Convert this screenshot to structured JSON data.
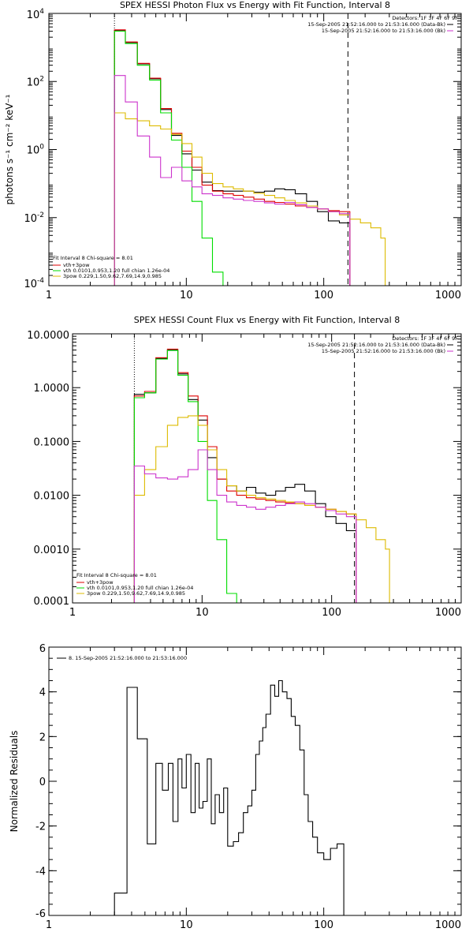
{
  "chart_data": [
    {
      "type": "line",
      "title": "SPEX HESSI Photon Flux vs Energy with Fit Function, Interval 8",
      "ylabel": "photons s⁻¹ cm⁻² keV⁻¹",
      "xlabel": "",
      "xscale": "log",
      "yscale": "log",
      "xlim": [
        1,
        1000
      ],
      "ylim": [
        0.0001,
        10000
      ],
      "x_ticks": [
        {
          "value": 1,
          "label": "1"
        },
        {
          "value": 10,
          "label": "10"
        },
        {
          "value": 100,
          "label": "100"
        },
        {
          "value": 1000,
          "label": "1000"
        }
      ],
      "y_ticks": [
        {
          "value": 0.0001,
          "base": "10",
          "exp": "-4"
        },
        {
          "value": 0.01,
          "base": "10",
          "exp": "-2"
        },
        {
          "value": 1,
          "base": "10",
          "exp": "0"
        },
        {
          "value": 100,
          "base": "10",
          "exp": "2"
        },
        {
          "value": 10000,
          "base": "10",
          "exp": "4"
        }
      ],
      "vlines": [
        {
          "x": 3,
          "style": "dotted",
          "color": "#000000"
        },
        {
          "x": 150,
          "style": "dashed",
          "color": "#000000"
        }
      ],
      "legend_topright": {
        "header": "Detectors: 1F 3F 4F 6F 9F",
        "entries": [
          {
            "text": "15-Sep-2005 21:52:16.000 to 21:53:16.000 (Data-Bk)",
            "color": "#000000"
          },
          {
            "text": "15-Sep-2005 21:52:16.000 to 21:53:16.000 (Bk)",
            "color": "#cc33cc"
          }
        ]
      },
      "legend_bottomleft": {
        "header": "Fit Interval 8    Chi-square = 8.01",
        "entries": [
          {
            "text": "vth+3pow",
            "color": "#dd0000"
          },
          {
            "text": "vth 0.0101,0.953,1.20  full chian 1.26e-04",
            "color": "#00dd00"
          },
          {
            "text": "3pow 0.229,1.50,9.62,7.69,14.9,0.985",
            "color": "#ddbb00"
          }
        ]
      },
      "series": [
        {
          "color": "#000000",
          "edges": [
            3,
            3.6,
            4.4,
            5.4,
            6.5,
            7.8,
            9.3,
            11,
            13,
            15.5,
            18.5,
            22,
            26,
            31,
            37,
            44,
            52,
            62,
            75,
            90,
            108,
            130,
            155
          ],
          "values": [
            3200,
            1400,
            330,
            120,
            15,
            2.6,
            0.75,
            0.25,
            0.11,
            0.062,
            0.06,
            0.06,
            0.06,
            0.056,
            0.06,
            0.07,
            0.066,
            0.05,
            0.03,
            0.015,
            0.008,
            0.007
          ]
        },
        {
          "color": "#dd0000",
          "edges": [
            3,
            3.6,
            4.4,
            5.4,
            6.5,
            7.8,
            9.3,
            11,
            13,
            15.5,
            18.5,
            22,
            26,
            31,
            37,
            44,
            52,
            62,
            75,
            90,
            108,
            130,
            155
          ],
          "values": [
            3300,
            1450,
            340,
            125,
            16,
            3.0,
            0.9,
            0.3,
            0.09,
            0.06,
            0.05,
            0.045,
            0.04,
            0.035,
            0.03,
            0.028,
            0.025,
            0.022,
            0.02,
            0.018,
            0.016,
            0.015
          ]
        },
        {
          "color": "#00dd00",
          "edges": [
            3,
            3.6,
            4.4,
            5.4,
            6.5,
            7.8,
            9.3,
            11,
            13,
            15.5,
            18.5,
            22
          ],
          "values": [
            3000,
            1300,
            300,
            110,
            12,
            1.9,
            0.3,
            0.03,
            0.0025,
            0.00025,
            2e-05
          ]
        },
        {
          "color": "#ddbb00",
          "edges": [
            3,
            3.6,
            4.4,
            5.4,
            6.5,
            7.8,
            9.3,
            11,
            13,
            15.5,
            18.5,
            22,
            26,
            31,
            37,
            44,
            52,
            62,
            75,
            90,
            108,
            130,
            155,
            185,
            220,
            260,
            280
          ],
          "values": [
            12,
            8,
            7,
            5,
            4,
            2.8,
            1.5,
            0.6,
            0.2,
            0.1,
            0.08,
            0.07,
            0.06,
            0.052,
            0.045,
            0.038,
            0.032,
            0.027,
            0.022,
            0.018,
            0.015,
            0.012,
            0.009,
            0.007,
            0.005,
            0.0025
          ]
        },
        {
          "color": "#cc33cc",
          "edges": [
            3,
            3.6,
            4.4,
            5.4,
            6.5,
            7.8,
            9.3,
            11,
            13,
            15.5,
            18.5,
            22,
            26,
            31,
            37,
            44,
            52,
            62,
            75,
            90,
            108,
            130,
            155
          ],
          "values": [
            150,
            25,
            2.5,
            0.6,
            0.15,
            0.3,
            0.12,
            0.08,
            0.05,
            0.045,
            0.038,
            0.035,
            0.032,
            0.03,
            0.027,
            0.025,
            0.028,
            0.024,
            0.02,
            0.018,
            0.015,
            0.013
          ]
        }
      ]
    },
    {
      "type": "line",
      "title": "SPEX HESSI Count Flux vs Energy with Fit Function, Interval 8",
      "ylabel": "",
      "xlabel": "",
      "xscale": "log",
      "yscale": "log",
      "xlim": [
        1,
        1000
      ],
      "ylim": [
        0.0001,
        10
      ],
      "x_ticks": [
        {
          "value": 1,
          "label": "1"
        },
        {
          "value": 10,
          "label": "10"
        },
        {
          "value": 100,
          "label": "100"
        },
        {
          "value": 1000,
          "label": "1000"
        }
      ],
      "y_ticks": [
        {
          "value": 0.0001,
          "label": "0.0001"
        },
        {
          "value": 0.001,
          "label": "0.0010"
        },
        {
          "value": 0.01,
          "label": "0.0100"
        },
        {
          "value": 0.1,
          "label": "0.1000"
        },
        {
          "value": 1,
          "label": "1.0000"
        },
        {
          "value": 10,
          "label": "10.0000"
        }
      ],
      "vlines": [
        {
          "x": 3,
          "style": "dotted",
          "color": "#000000"
        },
        {
          "x": 150,
          "style": "dashed",
          "color": "#000000"
        }
      ],
      "legend_topright": {
        "header": "Detectors: 1F 3F 4F 6F 9F",
        "entries": [
          {
            "text": "15-Sep-2005 21:52:16.000 to 21:53:16.000 (Data-Bk)",
            "color": "#000000"
          },
          {
            "text": "15-Sep-2005 21:52:16.000 to 21:53:16.000 (Bk)",
            "color": "#cc33cc"
          }
        ]
      },
      "legend_bottomleft": {
        "header": "Fit Interval 8    Chi-square = 8.01",
        "entries": [
          {
            "text": "vth+3pow",
            "color": "#dd0000"
          },
          {
            "text": "vth 0.0101,0.953,1.20  full chian 1.26e-04",
            "color": "#00dd00"
          },
          {
            "text": "3pow 0.229,1.50,9.62,7.69,14.9,0.985",
            "color": "#ddbb00"
          }
        ]
      },
      "series": [
        {
          "color": "#000000",
          "edges": [
            3,
            3.6,
            4.4,
            5.4,
            6.5,
            7.8,
            9.3,
            11,
            13,
            15.5,
            18.5,
            22,
            26,
            31,
            37,
            44,
            52,
            62,
            75,
            90,
            108,
            130,
            155
          ],
          "values": [
            0.75,
            0.8,
            3.5,
            5.0,
            1.8,
            0.6,
            0.25,
            0.05,
            0.02,
            0.015,
            0.012,
            0.014,
            0.011,
            0.01,
            0.012,
            0.014,
            0.016,
            0.012,
            0.007,
            0.004,
            0.003,
            0.0022
          ]
        },
        {
          "color": "#dd0000",
          "edges": [
            3,
            3.6,
            4.4,
            5.4,
            6.5,
            7.8,
            9.3,
            11,
            13,
            15.5,
            18.5,
            22,
            26,
            31,
            37,
            44,
            52,
            62,
            75,
            90,
            108,
            130,
            155
          ],
          "values": [
            0.7,
            0.85,
            3.6,
            5.2,
            1.9,
            0.7,
            0.3,
            0.08,
            0.02,
            0.012,
            0.01,
            0.009,
            0.0085,
            0.008,
            0.0075,
            0.0072,
            0.007,
            0.0065,
            0.006,
            0.0055,
            0.005,
            0.0045
          ]
        },
        {
          "color": "#00dd00",
          "edges": [
            3,
            3.6,
            4.4,
            5.4,
            6.5,
            7.8,
            9.3,
            11,
            13,
            15.5,
            18.5,
            22
          ],
          "values": [
            0.65,
            0.8,
            3.4,
            4.9,
            1.7,
            0.55,
            0.1,
            0.008,
            0.0015,
            0.00015,
            2e-05
          ]
        },
        {
          "color": "#ddbb00",
          "edges": [
            3,
            3.6,
            4.4,
            5.4,
            6.5,
            7.8,
            9.3,
            11,
            13,
            15.5,
            18.5,
            22,
            26,
            31,
            37,
            44,
            52,
            62,
            75,
            90,
            108,
            130,
            155,
            185,
            220,
            260,
            280
          ],
          "values": [
            0.01,
            0.03,
            0.08,
            0.2,
            0.28,
            0.3,
            0.2,
            0.07,
            0.03,
            0.015,
            0.012,
            0.01,
            0.009,
            0.0085,
            0.008,
            0.0075,
            0.007,
            0.0065,
            0.006,
            0.0055,
            0.005,
            0.0045,
            0.0035,
            0.0025,
            0.0015,
            0.001
          ]
        },
        {
          "color": "#cc33cc",
          "edges": [
            3,
            3.6,
            4.4,
            5.4,
            6.5,
            7.8,
            9.3,
            11,
            13,
            15.5,
            18.5,
            22,
            26,
            31,
            37,
            44,
            52,
            62,
            75,
            90,
            108,
            130,
            155
          ],
          "values": [
            0.035,
            0.025,
            0.021,
            0.02,
            0.022,
            0.03,
            0.07,
            0.03,
            0.01,
            0.0075,
            0.0065,
            0.006,
            0.0055,
            0.006,
            0.0065,
            0.007,
            0.0075,
            0.007,
            0.006,
            0.0052,
            0.0045,
            0.004
          ]
        }
      ]
    },
    {
      "type": "line",
      "title": "",
      "ylabel": "Normalized Residuals",
      "xlabel": "",
      "xscale": "log",
      "yscale": "linear",
      "xlim": [
        1,
        1000
      ],
      "ylim": [
        -6,
        6
      ],
      "x_ticks": [
        {
          "value": 1,
          "label": "1"
        },
        {
          "value": 10,
          "label": "10"
        },
        {
          "value": 100,
          "label": "100"
        },
        {
          "value": 1000,
          "label": "1000"
        }
      ],
      "y_ticks": [
        {
          "value": -6,
          "label": "-6"
        },
        {
          "value": -4,
          "label": "-4"
        },
        {
          "value": -2,
          "label": "-2"
        },
        {
          "value": 0,
          "label": "0"
        },
        {
          "value": 2,
          "label": "2"
        },
        {
          "value": 4,
          "label": "4"
        },
        {
          "value": 6,
          "label": "6"
        }
      ],
      "vlines": [],
      "legend_topleft": {
        "entries": [
          {
            "text": "8. 15-Sep-2005 21:52:16.000 to 21:53:16.000",
            "color": "#000000"
          }
        ]
      },
      "series": [
        {
          "color": "#000000",
          "edges": [
            3,
            3.7,
            4.4,
            5.2,
            6.0,
            6.7,
            7.4,
            8.0,
            8.7,
            9.3,
            10,
            10.8,
            11.6,
            12.4,
            13.2,
            14.2,
            15.2,
            16.2,
            17.4,
            18.7,
            20,
            22,
            24,
            26,
            28,
            30,
            32,
            34,
            36,
            38,
            41,
            44,
            47,
            50,
            54,
            58,
            62,
            67,
            72,
            77,
            83,
            90,
            100,
            112,
            125,
            140,
            155
          ],
          "values": [
            -5.0,
            4.2,
            1.9,
            -2.8,
            0.8,
            -0.4,
            0.8,
            -1.8,
            1.0,
            -0.3,
            1.2,
            -1.4,
            0.8,
            -1.2,
            -0.9,
            1.0,
            -1.9,
            -0.6,
            -1.4,
            -0.3,
            -2.9,
            -2.7,
            -2.3,
            -1.4,
            -1.1,
            -0.4,
            1.2,
            1.8,
            2.4,
            3.0,
            4.3,
            3.8,
            4.5,
            4.0,
            3.7,
            2.9,
            2.5,
            1.4,
            -0.6,
            -1.8,
            -2.5,
            -3.2,
            -3.5,
            -3.0,
            -2.8,
            -7.0
          ]
        }
      ]
    }
  ]
}
